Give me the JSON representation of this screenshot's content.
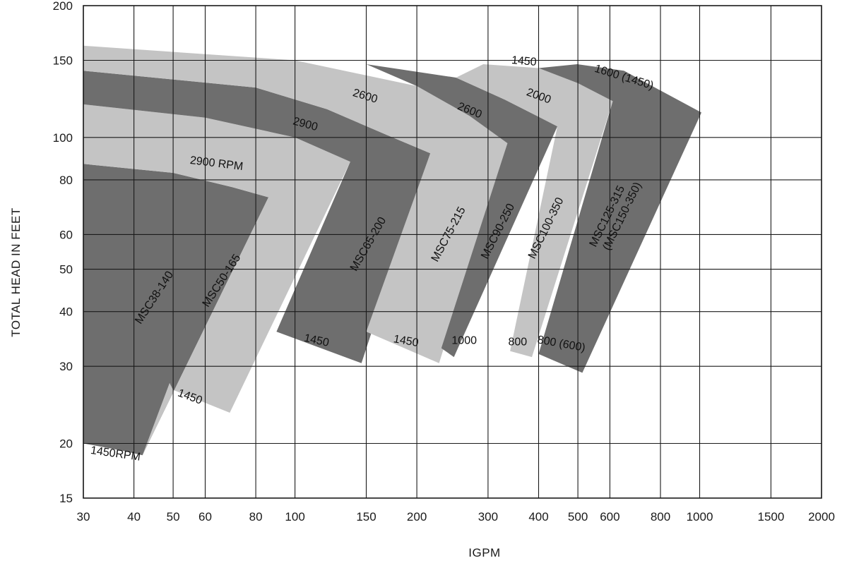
{
  "chart_data": {
    "type": "area",
    "title": "",
    "xlabel": "IGPM",
    "ylabel": "TOTAL HEAD IN FEET",
    "x_scale": "log",
    "y_scale": "log",
    "xlim": [
      30,
      2000
    ],
    "ylim": [
      15,
      200
    ],
    "grid": true,
    "x_ticks": [
      30,
      40,
      50,
      60,
      80,
      100,
      150,
      200,
      300,
      400,
      500,
      600,
      800,
      1000,
      1500,
      2000
    ],
    "y_ticks": [
      15,
      20,
      30,
      40,
      50,
      60,
      80,
      100,
      150,
      200
    ],
    "colors": {
      "dark_band": "#6e6e6e",
      "light_band": "#c4c4c4",
      "grid": "#1a1a1a"
    },
    "series": [
      {
        "name": "MSC38-140",
        "shade": "dark",
        "outer_head_label": "2900 RPM",
        "inner_head_label": "1450RPM",
        "polygon": [
          [
            30,
            87
          ],
          [
            50,
            83
          ],
          [
            70,
            77
          ],
          [
            86,
            73
          ],
          [
            42,
            18.8
          ],
          [
            37,
            19.3
          ],
          [
            30,
            20
          ]
        ]
      },
      {
        "name": "MSC50-165",
        "shade": "light",
        "outer_head_label": "2900 RPM",
        "inner_head_label": "1450",
        "polygon": [
          [
            30,
            119
          ],
          [
            60,
            111
          ],
          [
            100,
            100
          ],
          [
            137,
            88
          ],
          [
            69,
            23.5
          ],
          [
            50,
            26.5
          ],
          [
            49,
            27.5
          ],
          [
            42,
            18.8
          ],
          [
            86,
            73
          ],
          [
            70,
            77
          ],
          [
            50,
            83
          ],
          [
            30,
            87
          ]
        ]
      },
      {
        "name": "MSC65-200",
        "shade": "dark",
        "outer_head_label": "2900",
        "inner_head_label": "1450",
        "polygon": [
          [
            30,
            142
          ],
          [
            80,
            130
          ],
          [
            120,
            116
          ],
          [
            170,
            101
          ],
          [
            216,
            92
          ],
          [
            146,
            30.5
          ],
          [
            90,
            36
          ],
          [
            137,
            88
          ],
          [
            100,
            100
          ],
          [
            60,
            111
          ],
          [
            30,
            119
          ]
        ]
      },
      {
        "name": "MSC75-215",
        "shade": "light",
        "outer_head_label": "2600",
        "inner_head_label": "1450",
        "polygon": [
          [
            30,
            162
          ],
          [
            100,
            150
          ],
          [
            200,
            131
          ],
          [
            270,
            112
          ],
          [
            335,
            97
          ],
          [
            227,
            30.5
          ],
          [
            150,
            36
          ],
          [
            216,
            92
          ],
          [
            170,
            101
          ],
          [
            120,
            116
          ],
          [
            80,
            130
          ],
          [
            30,
            142
          ]
        ]
      },
      {
        "name": "MSC90-250",
        "shade": "dark",
        "outer_head_label": "2600",
        "inner_head_label": "1000",
        "polygon": [
          [
            150,
            147
          ],
          [
            250,
            137
          ],
          [
            330,
            122
          ],
          [
            445,
            106
          ],
          [
            247,
            31.5
          ],
          [
            230,
            33
          ],
          [
            335,
            97
          ],
          [
            270,
            112
          ],
          [
            200,
            131
          ],
          [
            150,
            147
          ]
        ]
      },
      {
        "name": "MSC100-350",
        "shade": "light",
        "outer_head_label": "1450",
        "mid_head_label": "2000",
        "inner_head_label": "800",
        "polygon": [
          [
            292,
            147
          ],
          [
            400,
            144
          ],
          [
            500,
            133
          ],
          [
            610,
            121
          ],
          [
            385,
            31.5
          ],
          [
            340,
            32.5
          ],
          [
            445,
            106
          ],
          [
            330,
            122
          ],
          [
            250,
            137
          ],
          [
            292,
            147
          ]
        ]
      },
      {
        "name": "MSC125-315\n(MSC150-350)",
        "shade": "dark",
        "outer_head_label": "1600 (1450)",
        "inner_head_label": "800 (600)",
        "polygon": [
          [
            498,
            147
          ],
          [
            650,
            142
          ],
          [
            800,
            128
          ],
          [
            1010,
            114
          ],
          [
            513,
            29
          ],
          [
            400,
            32
          ],
          [
            610,
            121
          ],
          [
            500,
            133
          ],
          [
            400,
            144
          ],
          [
            498,
            147
          ]
        ]
      }
    ],
    "annotations": [
      {
        "text": "2900 RPM",
        "x": 64,
        "y": 87,
        "rotate": 7
      },
      {
        "text": "2900",
        "x": 106,
        "y": 107,
        "rotate": 15
      },
      {
        "text": "2600",
        "x": 149,
        "y": 124,
        "rotate": 17
      },
      {
        "text": "2600",
        "x": 270,
        "y": 115,
        "rotate": 22
      },
      {
        "text": "1450",
        "x": 368,
        "y": 149,
        "rotate": 5
      },
      {
        "text": "2000",
        "x": 400,
        "y": 124,
        "rotate": 20
      },
      {
        "text": "1600 (1450)",
        "x": 650,
        "y": 137,
        "rotate": 17
      },
      {
        "text": "MSC38-140",
        "x": 45,
        "y": 43,
        "rotate": -57
      },
      {
        "text": "MSC50-165",
        "x": 66,
        "y": 47,
        "rotate": -57
      },
      {
        "text": "MSC65-200",
        "x": 152,
        "y": 57,
        "rotate": -60
      },
      {
        "text": "MSC75-215",
        "x": 240,
        "y": 60,
        "rotate": -62
      },
      {
        "text": "MSC90-250",
        "x": 318,
        "y": 61,
        "rotate": -63
      },
      {
        "text": "MSC100-350",
        "x": 418,
        "y": 62,
        "rotate": -64
      },
      {
        "text": "MSC125-315",
        "x": 592,
        "y": 66,
        "rotate": -64
      },
      {
        "text": "(MSC150-350)",
        "x": 645,
        "y": 66,
        "rotate": -64
      },
      {
        "text": "1450RPM",
        "x": 36,
        "y": 18.9,
        "rotate": 8
      },
      {
        "text": "1450",
        "x": 55,
        "y": 25.5,
        "rotate": 20
      },
      {
        "text": "1450",
        "x": 113,
        "y": 34.3,
        "rotate": 12
      },
      {
        "text": "1450",
        "x": 188,
        "y": 34.2,
        "rotate": 10
      },
      {
        "text": "1000",
        "x": 262,
        "y": 34.3,
        "rotate": 0
      },
      {
        "text": "800",
        "x": 355,
        "y": 34.0,
        "rotate": 0
      },
      {
        "text": "800 (600)",
        "x": 455,
        "y": 33.7,
        "rotate": 10
      }
    ]
  }
}
